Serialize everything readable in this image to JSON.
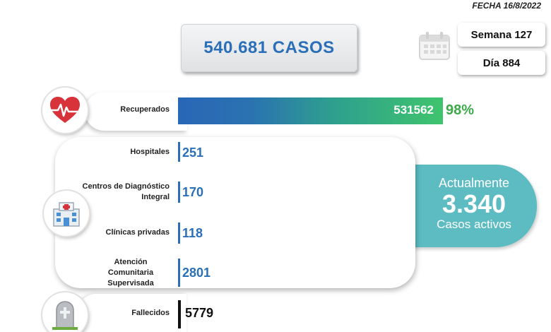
{
  "header": {
    "fecha": "FECHA 16/8/2022"
  },
  "summary": {
    "total_cases": "540.681 CASOS",
    "week": "Semana 127",
    "day": "Día 884"
  },
  "recovered": {
    "label": "Recuperados",
    "value": "531562",
    "percent": "98%",
    "share": 0.98
  },
  "hospitalized": [
    {
      "label": "Hospitales",
      "value": "251"
    },
    {
      "label": "Centros de Diagnóstico Integral",
      "value": "170"
    },
    {
      "label": "Clínicas privadas",
      "value": "118"
    },
    {
      "label": "Atención Comunitaria Supervisada",
      "value": "2801"
    }
  ],
  "active": {
    "line1": "Actualmente",
    "number": "3.340",
    "line2": "Casos activos"
  },
  "deceased": {
    "label": "Fallecidos",
    "value": "5779"
  },
  "icons": {
    "calendar": "calendar-icon",
    "recovered": "heart-pulse-icon",
    "hospital": "hospital-icon",
    "deceased": "tombstone-icon"
  },
  "colors": {
    "accent_blue": "#2a6fb8",
    "green": "#3daa4a",
    "teal": "#5cbcc2"
  }
}
